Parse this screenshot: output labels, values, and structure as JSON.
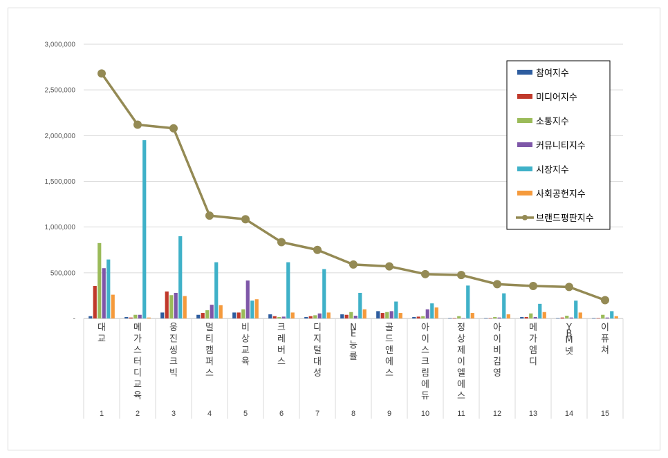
{
  "chart_data": {
    "type": "bar",
    "ylim": [
      0,
      3000000
    ],
    "yticks": [
      "-",
      "500,000",
      "1,000,000",
      "1,500,000",
      "2,000,000",
      "2,500,000",
      "3,000,000"
    ],
    "ytick_values": [
      0,
      500000,
      1000000,
      1500000,
      2000000,
      2500000,
      3000000
    ],
    "grid": true,
    "legend_position": "top-right",
    "categories": [
      "대교",
      "메가스터디교육",
      "웅진씽크빅",
      "멀티캠퍼스",
      "비상교육",
      "크레버스",
      "디지털대성",
      "NE능률",
      "골드앤에스",
      "아이스크림에듀",
      "정상제이엘에스",
      "아이비김영",
      "메가엠디",
      "YBM넷",
      "이퓨쳐"
    ],
    "ranks": [
      "1",
      "2",
      "3",
      "4",
      "5",
      "6",
      "7",
      "8",
      "9",
      "10",
      "11",
      "12",
      "13",
      "14",
      "15"
    ],
    "series": [
      {
        "name": "참여지수",
        "color": "#2e5d9f",
        "values": [
          25000,
          15000,
          65000,
          40000,
          65000,
          45000,
          15000,
          45000,
          80000,
          15000,
          5000,
          5000,
          15000,
          5000,
          5000
        ]
      },
      {
        "name": "미디어지수",
        "color": "#c0392b",
        "values": [
          355000,
          10000,
          295000,
          60000,
          65000,
          25000,
          25000,
          40000,
          60000,
          20000,
          5000,
          5000,
          15000,
          10000,
          5000
        ]
      },
      {
        "name": "소통지수",
        "color": "#9bbb59",
        "values": [
          825000,
          40000,
          255000,
          90000,
          100000,
          15000,
          35000,
          70000,
          70000,
          25000,
          25000,
          15000,
          55000,
          30000,
          40000
        ]
      },
      {
        "name": "커뮤니티지수",
        "color": "#7e57a8",
        "values": [
          550000,
          40000,
          280000,
          150000,
          415000,
          20000,
          55000,
          30000,
          80000,
          100000,
          5000,
          10000,
          15000,
          10000,
          10000
        ]
      },
      {
        "name": "시장지수",
        "color": "#3fb1c8",
        "values": [
          645000,
          1950000,
          900000,
          615000,
          195000,
          615000,
          540000,
          280000,
          185000,
          165000,
          360000,
          275000,
          160000,
          195000,
          80000
        ]
      },
      {
        "name": "사회공헌지수",
        "color": "#f59a3c",
        "values": [
          260000,
          10000,
          245000,
          145000,
          210000,
          65000,
          65000,
          100000,
          60000,
          120000,
          60000,
          45000,
          70000,
          65000,
          25000
        ]
      }
    ],
    "line_series": {
      "name": "브랜드평판지수",
      "color": "#948a54",
      "values": [
        2680000,
        2120000,
        2080000,
        1125000,
        1085000,
        835000,
        750000,
        590000,
        570000,
        485000,
        475000,
        375000,
        355000,
        345000,
        200000
      ]
    }
  }
}
